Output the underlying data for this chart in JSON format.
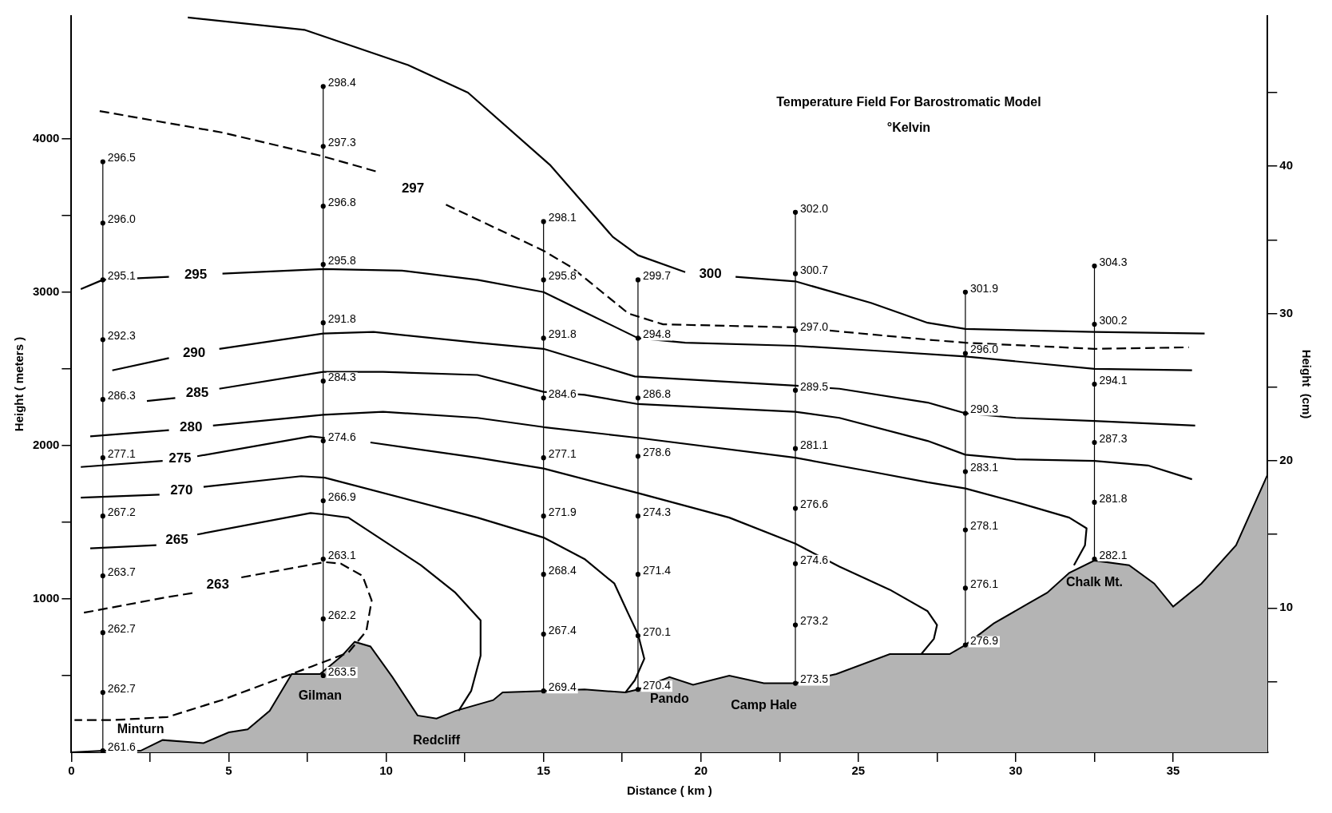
{
  "chart_data": {
    "type": "line",
    "title": "Temperature Field For Barostromatic Model",
    "subtitle": "°Kelvin",
    "xlabel": "Distance ( km )",
    "ylabel": "Height ( meters )",
    "y2label": "Height  (cm)",
    "xlim": [
      0,
      38
    ],
    "xticks": [
      0,
      {
        "value": 2.5,
        "label": null
      },
      5,
      {
        "value": 7.5,
        "label": null
      },
      10,
      {
        "value": 12.5,
        "label": null
      },
      15,
      {
        "value": 17.5,
        "label": null
      },
      20,
      {
        "value": 22.5,
        "label": null
      },
      25,
      {
        "value": 27.5,
        "label": null
      },
      30,
      {
        "value": 32.5,
        "label": null
      },
      35
    ],
    "ylim": [
      0,
      4800
    ],
    "yticks": [
      {
        "value": 500,
        "label": null
      },
      1000,
      {
        "value": 1500,
        "label": null
      },
      2000,
      {
        "value": 2500,
        "label": null
      },
      3000,
      {
        "value": 3500,
        "label": null
      },
      4000
    ],
    "y2lim": [
      0.2,
      50.2
    ],
    "y2ticks": [
      {
        "value": 5,
        "label": null
      },
      10,
      {
        "value": 15,
        "label": null
      },
      20,
      {
        "value": 25,
        "label": null
      },
      30,
      {
        "value": 35,
        "label": null
      },
      40,
      {
        "value": 45,
        "label": null
      }
    ],
    "marker": "none",
    "line_style": "solid",
    "series": [
      {
        "type": "area",
        "color": "#b4b4b4",
        "x": [
          0,
          1,
          2.2,
          2.9,
          4.2,
          5,
          5.6,
          6.3,
          7,
          7.9,
          8.6,
          9,
          9.5,
          10.2,
          11,
          11.6,
          12.2,
          13.4,
          13.7,
          15,
          16.3,
          17.6,
          18,
          19,
          19.75,
          20.9,
          22,
          23,
          24.3,
          26,
          27.9,
          28.4,
          29.3,
          30.4,
          31,
          31.7,
          32.5,
          33.6,
          34.4,
          35,
          35.9,
          37,
          38
        ],
        "values": [
          0,
          10,
          10,
          80,
          60,
          130,
          150,
          270,
          510,
          510,
          630,
          720,
          690,
          490,
          240,
          220,
          270,
          340,
          390,
          400,
          410,
          390,
          410,
          490,
          440,
          500,
          450,
          450,
          510,
          640,
          640,
          700,
          840,
          970,
          1040,
          1170,
          1250,
          1220,
          1100,
          950,
          1100,
          1350,
          1810
        ]
      },
      {
        "name": "300",
        "color": "#000000",
        "x": [
          3.7,
          7.4,
          10.7,
          12.6,
          15.2,
          17.2,
          18,
          19.5,
          20.3,
          21.1,
          23,
          25.4,
          27.2,
          28.4,
          32.5,
          36
        ],
        "values": [
          4790,
          4710,
          4480,
          4300,
          3830,
          3360,
          3240,
          3130,
          null,
          3100,
          3070,
          2930,
          2800,
          2760,
          2740,
          2730
        ]
      },
      {
        "name": "297",
        "color": "#000000",
        "line_style": "dashed",
        "x": [
          0.9,
          4.8,
          7.9,
          9.8,
          10.8,
          11.9,
          15,
          15.9,
          17.7,
          18.8,
          23,
          27.2,
          28.4,
          32.5,
          35.5
        ],
        "values": [
          4180,
          4040,
          3890,
          3780,
          null,
          3570,
          3270,
          3160,
          2860,
          2790,
          2770,
          2690,
          2670,
          2630,
          2640
        ]
      },
      {
        "name": "295",
        "color": "#000000",
        "x": [
          0.3,
          1,
          3.1,
          4,
          4.8,
          8,
          10.5,
          12.9,
          15,
          16.3,
          18,
          19.5,
          23,
          25.4,
          28.4,
          32.5,
          35.6
        ],
        "values": [
          3020,
          3080,
          3100,
          null,
          3120,
          3150,
          3140,
          3080,
          3000,
          2870,
          2700,
          2670,
          2650,
          2620,
          2580,
          2500,
          2490
        ]
      },
      {
        "name": "290",
        "color": "#000000",
        "x": [
          1.3,
          3.1,
          3.9,
          4.7,
          8,
          9.6,
          12.9,
          15,
          16.3,
          17.9,
          23,
          24.4,
          27.2,
          28.4,
          30,
          32.5,
          35.7
        ],
        "values": [
          2490,
          2570,
          null,
          2630,
          2730,
          2740,
          2670,
          2630,
          2550,
          2450,
          2390,
          2370,
          2280,
          2210,
          2180,
          2160,
          2130
        ]
      },
      {
        "name": "285",
        "color": "#000000",
        "x": [
          2.4,
          3.3,
          3.9,
          4.7,
          8,
          9.9,
          12.9,
          15,
          16.3,
          18,
          23,
          24.4,
          27.2,
          28.4,
          30,
          32.5,
          34.2,
          35.6
        ],
        "values": [
          2290,
          2310,
          null,
          2370,
          2480,
          2480,
          2460,
          2350,
          2330,
          2270,
          2220,
          2180,
          2030,
          1940,
          1910,
          1900,
          1870,
          1780
        ]
      },
      {
        "name": "280",
        "color": "#000000",
        "x": [
          0.6,
          3.1,
          3.7,
          4.5,
          8,
          9.9,
          12.9,
          15,
          18,
          23,
          25.4,
          27.2,
          28.4,
          30.2,
          31.7,
          32.25,
          32.2,
          31.85
        ],
        "values": [
          2060,
          2100,
          null,
          2130,
          2200,
          2220,
          2180,
          2120,
          2050,
          1920,
          1830,
          1760,
          1720,
          1620,
          1530,
          1460,
          1350,
          1220
        ]
      },
      {
        "name": "275",
        "color": "#000000",
        "x": [
          0.3,
          2.9,
          3.45,
          4,
          7.6,
          8.05,
          8.8,
          9.5,
          12.9,
          15,
          18,
          20.9,
          23,
          24.4,
          26,
          27.2,
          27.5,
          27.4,
          27
        ],
        "values": [
          1860,
          1900,
          null,
          1930,
          2060,
          2050,
          null,
          2020,
          1920,
          1850,
          1690,
          1530,
          1360,
          1210,
          1060,
          920,
          830,
          740,
          640
        ]
      },
      {
        "name": "270",
        "color": "#000000",
        "x": [
          0.3,
          2.8,
          3.45,
          4.2,
          7.3,
          8.05,
          12.9,
          15,
          16.3,
          17.25,
          17.7,
          18,
          18.2,
          17.9,
          17.6
        ],
        "values": [
          1660,
          1680,
          null,
          1730,
          1800,
          1790,
          1530,
          1400,
          1260,
          1100,
          900,
          770,
          610,
          470,
          390
        ]
      },
      {
        "name": "265",
        "color": "#000000",
        "x": [
          0.6,
          2.7,
          3.4,
          4,
          7.6,
          8.05,
          8.8,
          11.1,
          12.2,
          13,
          13,
          12.7,
          12.3
        ],
        "values": [
          1330,
          1350,
          null,
          1420,
          1560,
          1550,
          1530,
          1220,
          1040,
          860,
          630,
          400,
          270
        ]
      },
      {
        "name": "263",
        "color": "#000000",
        "line_style": "dashed",
        "x": [
          0.4,
          3,
          3.9,
          4.66,
          5.4,
          8.05,
          8.56,
          9.25,
          9.54,
          9.37,
          8.8,
          7.64,
          4.77,
          3.05,
          1.32,
          0.1
        ],
        "values": [
          910,
          1010,
          1040,
          null,
          1140,
          1240,
          1230,
          1150,
          990,
          790,
          650,
          560,
          340,
          230,
          210,
          210
        ]
      },
      {
        "color": "#000000",
        "marker": "circle",
        "x": [
          1,
          1,
          1,
          1,
          1,
          1,
          1,
          1,
          1,
          1,
          1
        ],
        "values": [
          3850,
          3450,
          3080,
          2690,
          2300,
          1920,
          1540,
          1150,
          780,
          390,
          10
        ]
      },
      {
        "color": "#000000",
        "marker": "circle",
        "x": [
          8,
          8,
          8,
          8,
          8,
          8,
          8,
          8,
          8,
          8,
          8
        ],
        "values": [
          4340,
          3950,
          3560,
          3180,
          2800,
          2420,
          2030,
          1640,
          1260,
          870,
          500
        ]
      },
      {
        "color": "#000000",
        "marker": "circle",
        "x": [
          15,
          15,
          15,
          15,
          15,
          15,
          15,
          15,
          15
        ],
        "values": [
          3460,
          3080,
          2700,
          2310,
          1920,
          1540,
          1160,
          770,
          400
        ]
      },
      {
        "color": "#000000",
        "marker": "circle",
        "x": [
          18,
          18,
          18,
          18,
          18,
          18,
          18,
          18
        ],
        "values": [
          3080,
          2700,
          2310,
          1930,
          1540,
          1160,
          760,
          410
        ]
      },
      {
        "color": "#000000",
        "marker": "circle",
        "x": [
          23,
          23,
          23,
          23,
          23,
          23,
          23,
          23,
          23
        ],
        "values": [
          3520,
          3120,
          2750,
          2360,
          1980,
          1590,
          1230,
          830,
          450
        ]
      },
      {
        "color": "#000000",
        "marker": "circle",
        "x": [
          28.4,
          28.4,
          28.4,
          28.4,
          28.4,
          28.4,
          28.4
        ],
        "values": [
          3000,
          2600,
          2210,
          1830,
          1450,
          1070,
          700
        ]
      },
      {
        "color": "#000000",
        "marker": "circle",
        "x": [
          32.5,
          32.5,
          32.5,
          32.5,
          32.5,
          32.5
        ],
        "values": [
          3170,
          2790,
          2400,
          2020,
          1630,
          1260
        ]
      }
    ],
    "annotations": [
      {
        "text": "296.5",
        "x": 1,
        "y": 3850
      },
      {
        "text": "296.0",
        "x": 1,
        "y": 3450
      },
      {
        "text": "295.1",
        "x": 1,
        "y": 3080
      },
      {
        "text": "292.3",
        "x": 1,
        "y": 2690
      },
      {
        "text": "286.3",
        "x": 1,
        "y": 2300
      },
      {
        "text": "277.1",
        "x": 1,
        "y": 1920
      },
      {
        "text": "267.2",
        "x": 1,
        "y": 1540
      },
      {
        "text": "263.7",
        "x": 1,
        "y": 1150
      },
      {
        "text": "262.7",
        "x": 1,
        "y": 780
      },
      {
        "text": "262.7",
        "x": 1,
        "y": 390
      },
      {
        "text": "261.6",
        "x": 1,
        "y": 10
      },
      {
        "text": "298.4",
        "x": 8,
        "y": 4340
      },
      {
        "text": "297.3",
        "x": 8,
        "y": 3950
      },
      {
        "text": "296.8",
        "x": 8,
        "y": 3560
      },
      {
        "text": "295.8",
        "x": 8,
        "y": 3180
      },
      {
        "text": "291.8",
        "x": 8,
        "y": 2800
      },
      {
        "text": "284.3",
        "x": 8,
        "y": 2420
      },
      {
        "text": "274.6",
        "x": 8,
        "y": 2030
      },
      {
        "text": "266.9",
        "x": 8,
        "y": 1640
      },
      {
        "text": "263.1",
        "x": 8,
        "y": 1260
      },
      {
        "text": "262.2",
        "x": 8,
        "y": 870
      },
      {
        "text": "263.5",
        "x": 8,
        "y": 500
      },
      {
        "text": "298.1",
        "x": 15,
        "y": 3460
      },
      {
        "text": "295.8",
        "x": 15,
        "y": 3080
      },
      {
        "text": "291.8",
        "x": 15,
        "y": 2700
      },
      {
        "text": "284.6",
        "x": 15,
        "y": 2310
      },
      {
        "text": "277.1",
        "x": 15,
        "y": 1920
      },
      {
        "text": "271.9",
        "x": 15,
        "y": 1540
      },
      {
        "text": "268.4",
        "x": 15,
        "y": 1160
      },
      {
        "text": "267.4",
        "x": 15,
        "y": 770
      },
      {
        "text": "269.4",
        "x": 15,
        "y": 400
      },
      {
        "text": "299.7",
        "x": 18,
        "y": 3080
      },
      {
        "text": "294.8",
        "x": 18,
        "y": 2700
      },
      {
        "text": "286.8",
        "x": 18,
        "y": 2310
      },
      {
        "text": "278.6",
        "x": 18,
        "y": 1930
      },
      {
        "text": "274.3",
        "x": 18,
        "y": 1540
      },
      {
        "text": "271.4",
        "x": 18,
        "y": 1160
      },
      {
        "text": "270.1",
        "x": 18,
        "y": 760
      },
      {
        "text": "270.4",
        "x": 18,
        "y": 410
      },
      {
        "text": "302.0",
        "x": 23,
        "y": 3520
      },
      {
        "text": "300.7",
        "x": 23,
        "y": 3120
      },
      {
        "text": "297.0",
        "x": 23,
        "y": 2750
      },
      {
        "text": "289.5",
        "x": 23,
        "y": 2360
      },
      {
        "text": "281.1",
        "x": 23,
        "y": 1980
      },
      {
        "text": "276.6",
        "x": 23,
        "y": 1590
      },
      {
        "text": "274.6",
        "x": 23,
        "y": 1230
      },
      {
        "text": "273.2",
        "x": 23,
        "y": 830
      },
      {
        "text": "273.5",
        "x": 23,
        "y": 450
      },
      {
        "text": "301.9",
        "x": 28.4,
        "y": 3000
      },
      {
        "text": "296.0",
        "x": 28.4,
        "y": 2600
      },
      {
        "text": "290.3",
        "x": 28.4,
        "y": 2210
      },
      {
        "text": "283.1",
        "x": 28.4,
        "y": 1830
      },
      {
        "text": "278.1",
        "x": 28.4,
        "y": 1450
      },
      {
        "text": "276.1",
        "x": 28.4,
        "y": 1070
      },
      {
        "text": "276.9",
        "x": 28.4,
        "y": 700
      },
      {
        "text": "304.3",
        "x": 32.5,
        "y": 3170
      },
      {
        "text": "300.2",
        "x": 32.5,
        "y": 2790
      },
      {
        "text": "294.1",
        "x": 32.5,
        "y": 2400
      },
      {
        "text": "287.3",
        "x": 32.5,
        "y": 2020
      },
      {
        "text": "281.8",
        "x": 32.5,
        "y": 1630
      },
      {
        "text": "282.1",
        "x": 32.5,
        "y": 1260
      },
      {
        "text": "Minturn",
        "x": 2.2,
        "y": 10
      },
      {
        "text": "Gilman",
        "x": 7.9,
        "y": 510
      },
      {
        "text": "Redcliff",
        "x": 11.6,
        "y": 220
      },
      {
        "text": "Pando",
        "x": 19,
        "y": 490
      },
      {
        "text": "Camp Hale",
        "x": 22,
        "y": 450
      },
      {
        "text": "Chalk Mt.",
        "x": 32.5,
        "y": 1250
      }
    ]
  }
}
